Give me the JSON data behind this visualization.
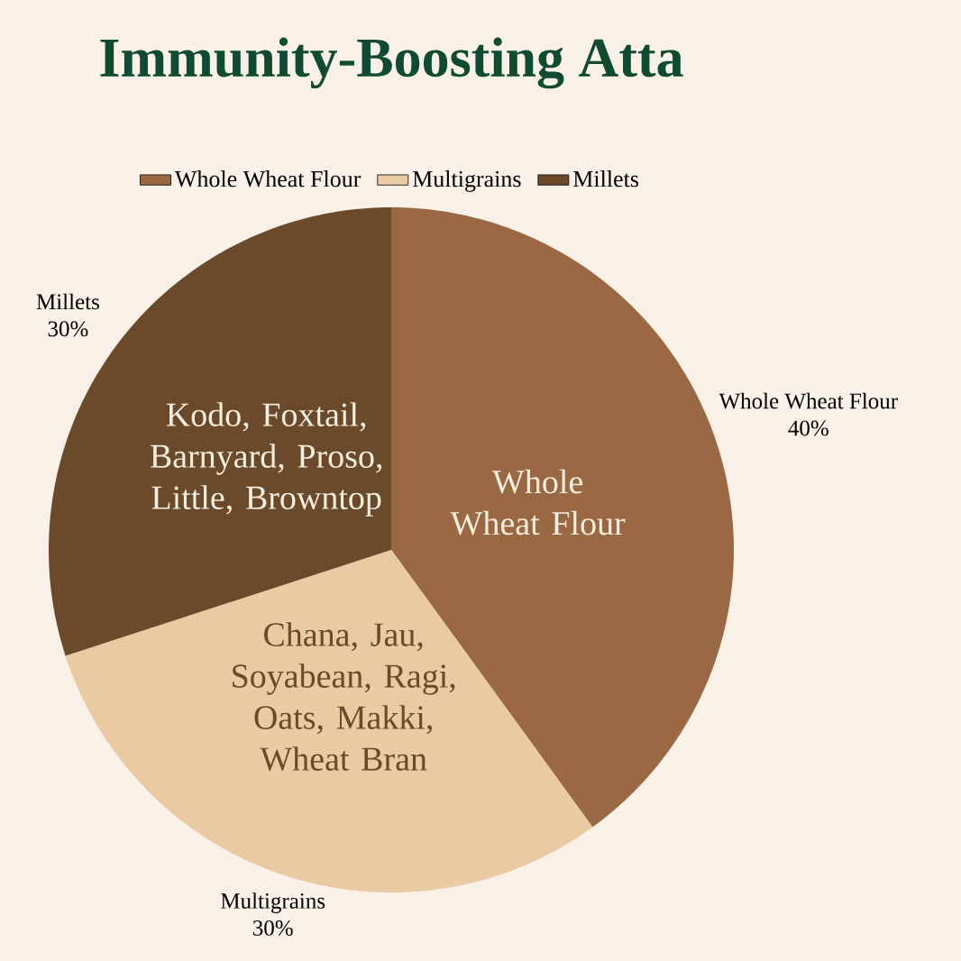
{
  "chart_data": {
    "type": "pie",
    "title": "Immunity-Boosting Atta",
    "categories": [
      "Whole Wheat Flour",
      "Multigrains",
      "Millets"
    ],
    "values": [
      40,
      30,
      30
    ],
    "colors": [
      "#9a6943",
      "#eacaa3",
      "#6b4a2c"
    ],
    "value_labels": [
      "40%",
      "30%",
      "30%"
    ],
    "annotations": [
      "Whole Wheat Flour",
      "Chana, Jau, Soyabean, Ragi, Oats, Makki, Wheat Bran",
      "Kodo, Foxtail, Barnyard, Proso, Little, Browntop"
    ],
    "legend": "top"
  }
}
